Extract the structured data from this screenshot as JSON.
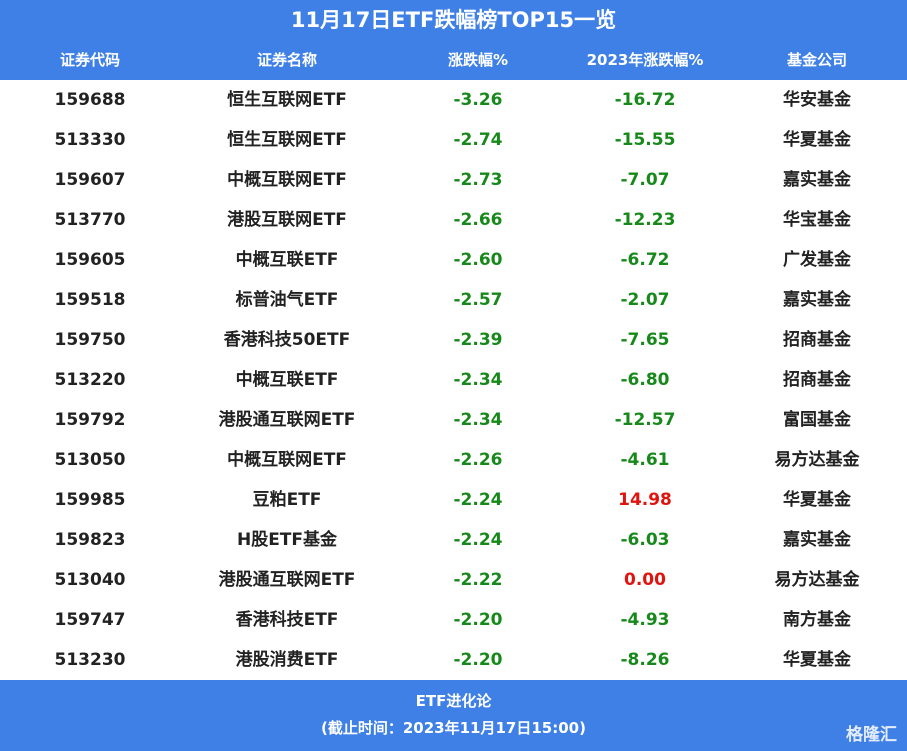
{
  "header": {
    "title": "11月17日ETF跌幅榜TOP15一览"
  },
  "table": {
    "columns": [
      "证券代码",
      "证券名称",
      "涨跌幅%",
      "2023年涨跌幅%",
      "基金公司"
    ],
    "rows": [
      [
        "159688",
        "恒生互联网ETF",
        "-3.26",
        "-16.72",
        "华安基金"
      ],
      [
        "513330",
        "恒生互联网ETF",
        "-2.74",
        "-15.55",
        "华夏基金"
      ],
      [
        "159607",
        "中概互联网ETF",
        "-2.73",
        "-7.07",
        "嘉实基金"
      ],
      [
        "513770",
        "港股互联网ETF",
        "-2.66",
        "-12.23",
        "华宝基金"
      ],
      [
        "159605",
        "中概互联ETF",
        "-2.60",
        "-6.72",
        "广发基金"
      ],
      [
        "159518",
        "标普油气ETF",
        "-2.57",
        "-2.07",
        "嘉实基金"
      ],
      [
        "159750",
        "香港科技50ETF",
        "-2.39",
        "-7.65",
        "招商基金"
      ],
      [
        "513220",
        "中概互联ETF",
        "-2.34",
        "-6.80",
        "招商基金"
      ],
      [
        "159792",
        "港股通互联网ETF",
        "-2.34",
        "-12.57",
        "富国基金"
      ],
      [
        "513050",
        "中概互联网ETF",
        "-2.26",
        "-4.61",
        "易方达基金"
      ],
      [
        "159985",
        "豆粕ETF",
        "-2.24",
        "14.98",
        "华夏基金"
      ],
      [
        "159823",
        "H股ETF基金",
        "-2.24",
        "-6.03",
        "嘉实基金"
      ],
      [
        "513040",
        "港股通互联网ETF",
        "-2.22",
        "0.00",
        "易方达基金"
      ],
      [
        "159747",
        "香港科技ETF",
        "-2.20",
        "-4.93",
        "南方基金"
      ],
      [
        "513230",
        "港股消费ETF",
        "-2.20",
        "-8.26",
        "华夏基金"
      ]
    ]
  },
  "footer": {
    "source": "ETF进化论",
    "time": "(截止时间：2023年11月17日15:00)",
    "watermark": "格隆汇"
  }
}
